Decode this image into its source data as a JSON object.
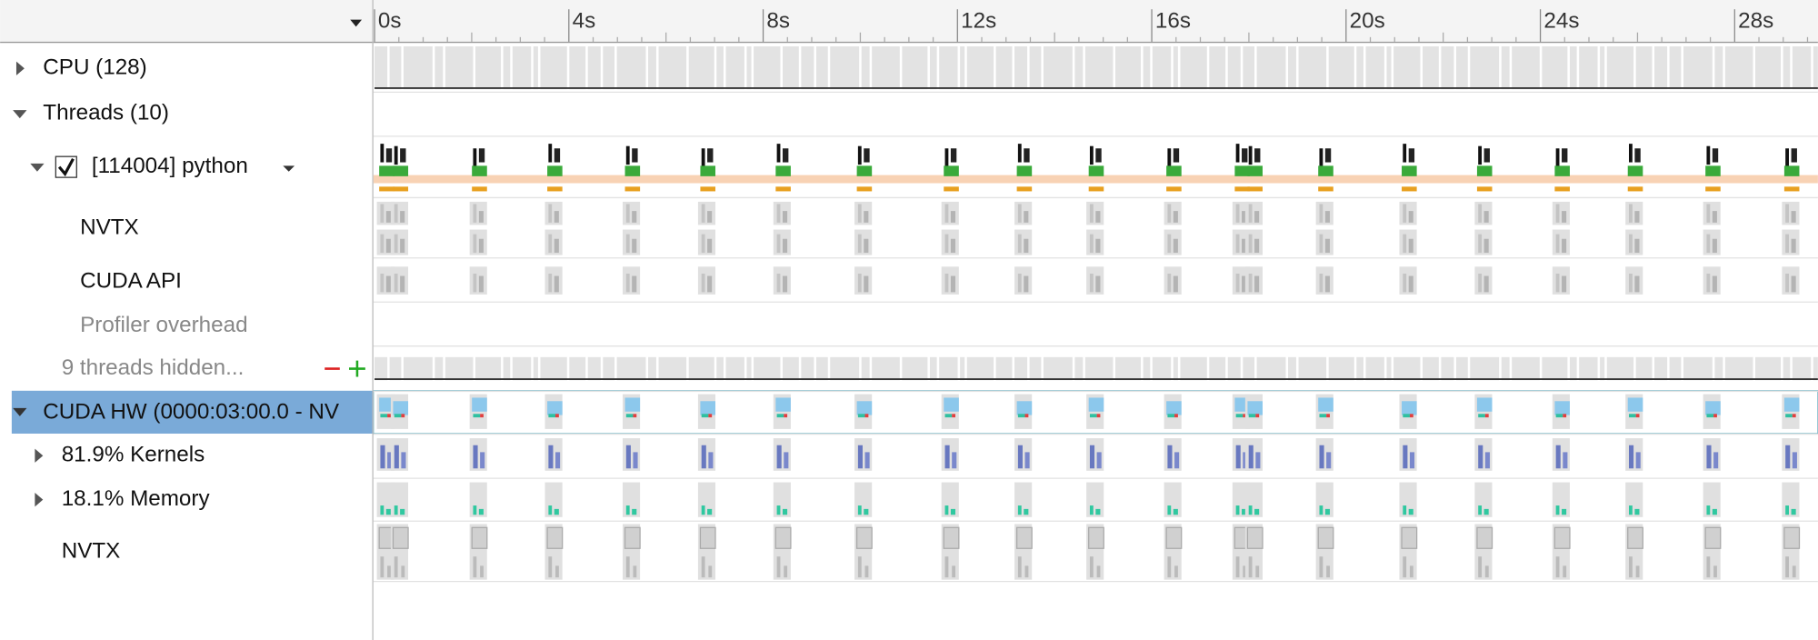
{
  "ruler": {
    "ticks": [
      "0s",
      "4s",
      "8s",
      "12s",
      "16s",
      "20s",
      "24s",
      "28s"
    ]
  },
  "rows": {
    "cpu": "CPU (128)",
    "threads": "Threads (10)",
    "process": "[114004] python",
    "nvtx": "NVTX",
    "cuda_api": "CUDA API",
    "profiler_overhead": "Profiler overhead",
    "hidden": "9 threads hidden...",
    "cuda_hw": "CUDA HW (0000:03:00.0 - NV",
    "kernels": "81.9% Kernels",
    "memory": "18.1% Memory",
    "gpu_nvtx": "NVTX"
  }
}
